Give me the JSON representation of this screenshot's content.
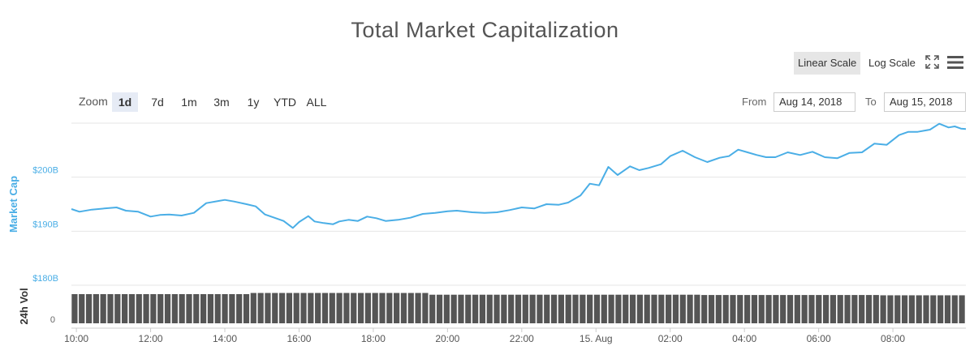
{
  "header": {
    "title": "Total Market Capitalization"
  },
  "toolbar": {
    "scale_buttons": [
      {
        "label": "Linear Scale",
        "active": true
      },
      {
        "label": "Log Scale",
        "active": false
      }
    ],
    "fullscreen_icon": "expand-icon",
    "menu_icon": "hamburger-menu-icon"
  },
  "zoom": {
    "label": "Zoom",
    "buttons": [
      {
        "label": "1d",
        "active": true
      },
      {
        "label": "7d",
        "active": false
      },
      {
        "label": "1m",
        "active": false
      },
      {
        "label": "3m",
        "active": false
      },
      {
        "label": "1y",
        "active": false
      },
      {
        "label": "YTD",
        "active": false
      },
      {
        "label": "ALL",
        "active": false
      }
    ]
  },
  "range": {
    "from_label": "From",
    "from_value": "Aug 14, 2018",
    "to_label": "To",
    "to_value": "Aug 15, 2018"
  },
  "colors": {
    "line": "#4aaee6",
    "axis_label": "#4aaee6",
    "volume_bar": "#555555",
    "grid": "#e6e6e6"
  },
  "chart_data": {
    "type": "line",
    "title": "Total Market Capitalization",
    "ylabel": "Market Cap",
    "ylabel_volume": "24h Vol",
    "y_ticks": [
      "$180B",
      "$190B",
      "$200B"
    ],
    "ylim": [
      180,
      210
    ],
    "volume_tick": "0",
    "x_ticks": [
      "10:00",
      "12:00",
      "14:00",
      "16:00",
      "18:00",
      "20:00",
      "22:00",
      "15. Aug",
      "02:00",
      "04:00",
      "06:00",
      "08:00"
    ],
    "x_range": [
      "2018-08-14 09:52",
      "2018-08-15 09:58"
    ],
    "series": [
      {
        "values_unit": "billion USD",
        "x": [
          "2018-08-14 09:52",
          "2018-08-14 10:05",
          "2018-08-14 10:25",
          "2018-08-14 10:45",
          "2018-08-14 11:05",
          "2018-08-14 11:20",
          "2018-08-14 11:40",
          "2018-08-14 12:00",
          "2018-08-14 12:15",
          "2018-08-14 12:30",
          "2018-08-14 12:50",
          "2018-08-14 13:10",
          "2018-08-14 13:30",
          "2018-08-14 13:50",
          "2018-08-14 14:00",
          "2018-08-14 14:15",
          "2018-08-14 14:35",
          "2018-08-14 14:50",
          "2018-08-14 15:05",
          "2018-08-14 15:20",
          "2018-08-14 15:35",
          "2018-08-14 15:50",
          "2018-08-14 16:00",
          "2018-08-14 16:15",
          "2018-08-14 16:25",
          "2018-08-14 16:40",
          "2018-08-14 16:55",
          "2018-08-14 17:05",
          "2018-08-14 17:20",
          "2018-08-14 17:35",
          "2018-08-14 17:50",
          "2018-08-14 18:05",
          "2018-08-14 18:20",
          "2018-08-14 18:40",
          "2018-08-14 19:00",
          "2018-08-14 19:20",
          "2018-08-14 19:40",
          "2018-08-14 20:00",
          "2018-08-14 20:15",
          "2018-08-14 20:40",
          "2018-08-14 21:00",
          "2018-08-14 21:20",
          "2018-08-14 21:40",
          "2018-08-14 22:00",
          "2018-08-14 22:20",
          "2018-08-14 22:40",
          "2018-08-14 23:00",
          "2018-08-14 23:15",
          "2018-08-14 23:35",
          "2018-08-14 23:50",
          "2018-08-15 00:05",
          "2018-08-15 00:20",
          "2018-08-15 00:35",
          "2018-08-15 00:55",
          "2018-08-15 01:10",
          "2018-08-15 01:25",
          "2018-08-15 01:45",
          "2018-08-15 02:00",
          "2018-08-15 02:20",
          "2018-08-15 02:40",
          "2018-08-15 03:00",
          "2018-08-15 03:20",
          "2018-08-15 03:35",
          "2018-08-15 03:50",
          "2018-08-15 04:05",
          "2018-08-15 04:20",
          "2018-08-15 04:35",
          "2018-08-15 04:50",
          "2018-08-15 05:10",
          "2018-08-15 05:30",
          "2018-08-15 05:50",
          "2018-08-15 06:10",
          "2018-08-15 06:30",
          "2018-08-15 06:50",
          "2018-08-15 07:10",
          "2018-08-15 07:30",
          "2018-08-15 07:50",
          "2018-08-15 08:10",
          "2018-08-15 08:25",
          "2018-08-15 08:40",
          "2018-08-15 09:00",
          "2018-08-15 09:15",
          "2018-08-15 09:30",
          "2018-08-15 09:40",
          "2018-08-15 09:50",
          "2018-08-15 09:58"
        ],
        "values": [
          194.1,
          193.6,
          194.0,
          194.2,
          194.4,
          193.8,
          193.6,
          192.7,
          193.0,
          193.1,
          192.9,
          193.4,
          195.2,
          195.6,
          195.8,
          195.5,
          195.0,
          194.6,
          193.1,
          192.5,
          191.9,
          190.6,
          191.7,
          192.8,
          191.8,
          191.5,
          191.3,
          191.8,
          192.1,
          191.9,
          192.7,
          192.4,
          191.9,
          192.1,
          192.5,
          193.2,
          193.4,
          193.7,
          193.8,
          193.5,
          193.4,
          193.5,
          193.9,
          194.4,
          194.2,
          195.0,
          194.9,
          195.3,
          196.6,
          198.8,
          198.5,
          201.9,
          200.4,
          202.0,
          201.3,
          201.7,
          202.4,
          203.9,
          204.9,
          203.7,
          202.8,
          203.6,
          203.9,
          205.1,
          204.6,
          204.1,
          203.7,
          203.7,
          204.6,
          204.1,
          204.7,
          203.7,
          203.5,
          204.5,
          204.6,
          206.2,
          206.0,
          207.8,
          208.4,
          208.4,
          208.8,
          209.9,
          209.2,
          209.4,
          209.0,
          208.9
        ]
      }
    ],
    "volume": {
      "bar_count": 125,
      "relative_levels": [
        1.0,
        1.0,
        1.04,
        1.04,
        0.98,
        0.98,
        0.98,
        0.97,
        0.97,
        0.96
      ]
    }
  }
}
